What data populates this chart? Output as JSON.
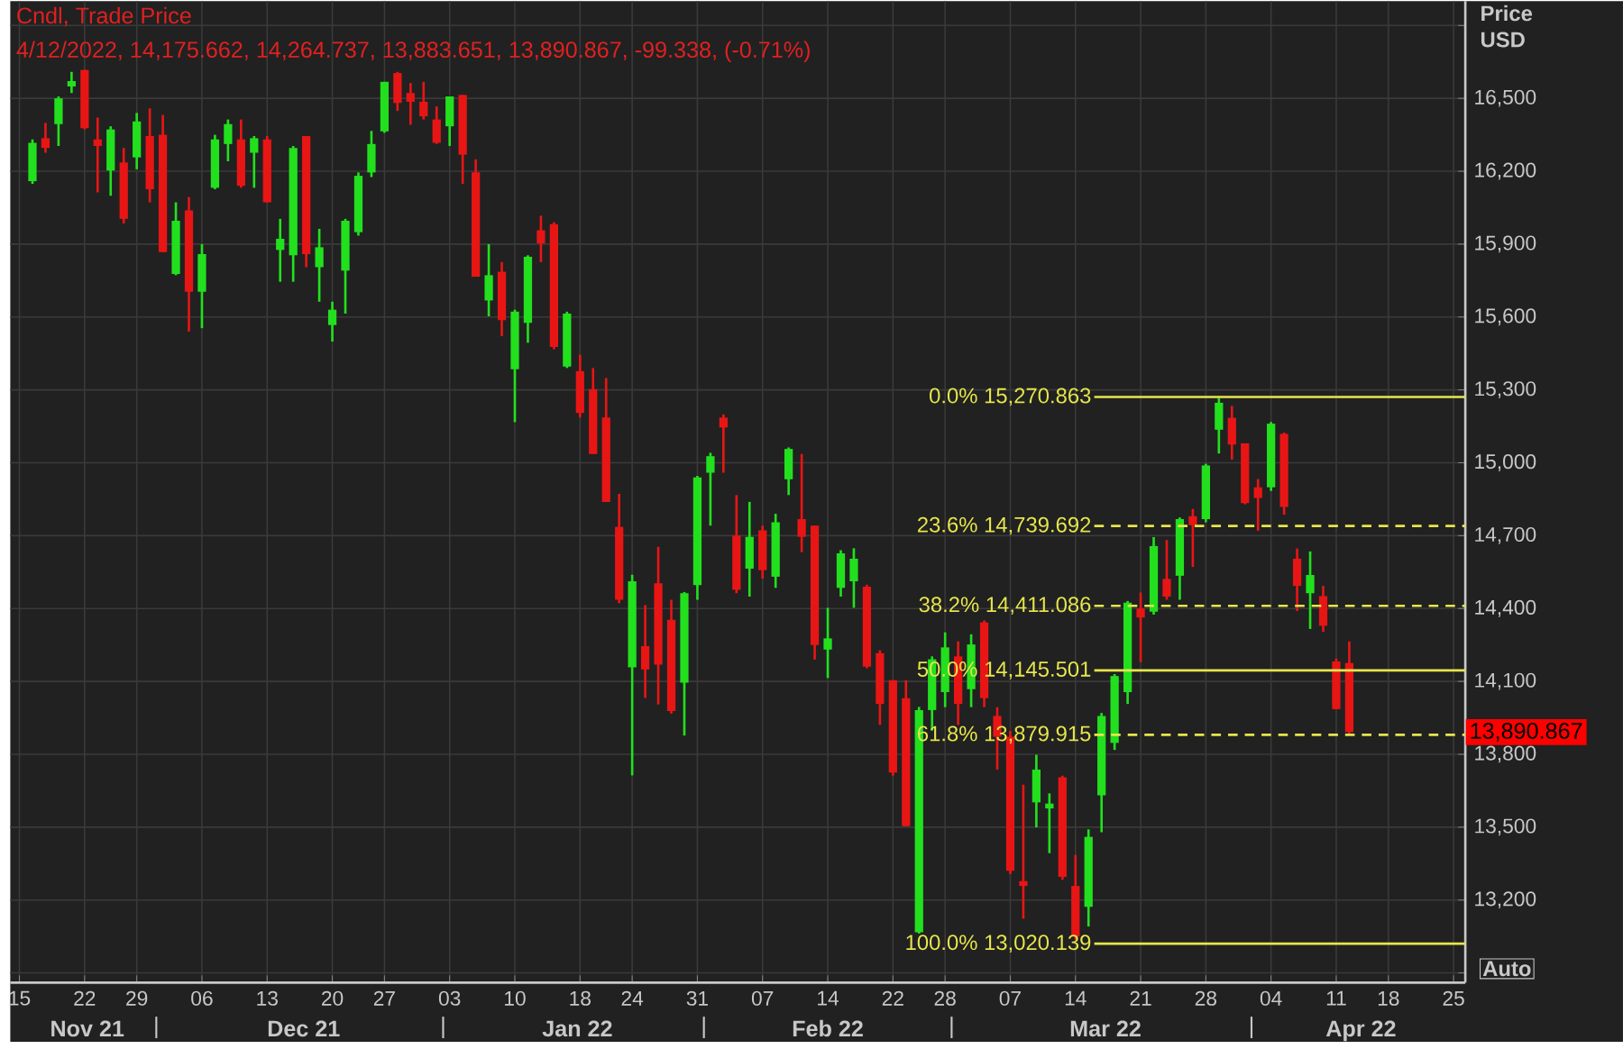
{
  "chart_data": {
    "type": "candlestick",
    "title": "Cndl, Trade Price",
    "subtitle": "4/12/2022, 14,175.662, 14,264.737, 13,883.651, 13,890.867, -99.338, (-0.71%)",
    "ylabel": "Price USD",
    "categories": [
      "15",
      null,
      null,
      null,
      null,
      "22",
      null,
      null,
      null,
      "29",
      null,
      null,
      null,
      null,
      "06",
      null,
      null,
      null,
      null,
      "13",
      null,
      null,
      null,
      null,
      "20",
      null,
      null,
      null,
      "27",
      null,
      null,
      null,
      null,
      "03",
      null,
      null,
      null,
      null,
      "10",
      null,
      null,
      null,
      null,
      "18",
      null,
      null,
      null,
      "24",
      null,
      null,
      null,
      null,
      "31",
      null,
      null,
      null,
      null,
      "07",
      null,
      null,
      null,
      null,
      "14",
      null,
      null,
      null,
      null,
      "22",
      null,
      null,
      null,
      "28",
      null,
      null,
      null,
      null,
      "07",
      null,
      null,
      null,
      null,
      "14",
      null,
      null,
      null,
      null,
      "21",
      null,
      null,
      null,
      null,
      "28",
      null,
      null,
      null,
      null,
      "04",
      null,
      null,
      null,
      null,
      "11",
      null,
      null,
      null,
      "18",
      null,
      null,
      null,
      null,
      "25"
    ],
    "ohlc": [
      null,
      [
        16159,
        16331,
        16148,
        16317
      ],
      [
        16336,
        16399,
        16276,
        16296
      ],
      [
        16394,
        16508,
        16304,
        16500
      ],
      [
        16549,
        16609,
        16522,
        16571
      ],
      [
        16617,
        16617,
        16372,
        16377
      ],
      [
        16331,
        16421,
        16113,
        16304
      ],
      [
        16203,
        16385,
        16099,
        16372
      ],
      [
        16236,
        16296,
        15985,
        16004
      ],
      [
        16257,
        16440,
        16208,
        16405
      ],
      [
        16345,
        16459,
        16072,
        16126
      ],
      [
        16350,
        16432,
        15867,
        15867
      ],
      [
        15777,
        16072,
        15772,
        15996
      ],
      [
        16039,
        16094,
        15540,
        15704
      ],
      [
        15704,
        15900,
        15554,
        15859
      ],
      [
        16132,
        16350,
        16126,
        16331
      ],
      [
        16312,
        16413,
        16241,
        16394
      ],
      [
        16331,
        16413,
        16132,
        16140
      ],
      [
        16276,
        16345,
        16132,
        16336
      ],
      [
        16331,
        16345,
        16072,
        16072
      ],
      [
        15876,
        16004,
        15745,
        15922
      ],
      [
        15854,
        16304,
        15745,
        16296
      ],
      [
        16345,
        16345,
        15805,
        15859
      ],
      [
        15805,
        15963,
        15663,
        15887
      ],
      [
        15567,
        15663,
        15499,
        15630
      ],
      [
        15791,
        16004,
        15614,
        15996
      ],
      [
        15949,
        16195,
        15935,
        16181
      ],
      [
        16195,
        16366,
        16176,
        16312
      ],
      [
        16364,
        16568,
        16358,
        16568
      ],
      [
        16604,
        16609,
        16448,
        16481
      ],
      [
        16522,
        16563,
        16391,
        16486
      ],
      [
        16486,
        16568,
        16413,
        16426
      ],
      [
        16413,
        16467,
        16312,
        16317
      ],
      [
        16385,
        16508,
        16304,
        16508
      ],
      [
        16514,
        16514,
        16148,
        16268
      ],
      [
        16195,
        16249,
        15766,
        15766
      ],
      [
        15668,
        15900,
        15603,
        15772
      ],
      [
        15786,
        15826,
        15521,
        15587
      ],
      [
        15385,
        15630,
        15167,
        15622
      ],
      [
        15576,
        15854,
        15494,
        15848
      ],
      [
        15957,
        16017,
        15826,
        15903
      ],
      [
        15982,
        15990,
        15467,
        15477
      ],
      [
        15396,
        15622,
        15390,
        15614
      ],
      [
        15377,
        15445,
        15186,
        15205
      ],
      [
        15303,
        15390,
        15036,
        15036
      ],
      [
        15186,
        15349,
        14839,
        14839
      ],
      [
        14736,
        14872,
        14422,
        14436
      ],
      [
        14158,
        14539,
        13713,
        14512
      ],
      [
        14245,
        14414,
        14032,
        14149
      ],
      [
        14504,
        14654,
        14005,
        14169
      ],
      [
        14354,
        14436,
        13967,
        13978
      ],
      [
        14095,
        14468,
        13877,
        14463
      ],
      [
        14496,
        14946,
        14436,
        14940
      ],
      [
        14959,
        15041,
        14741,
        15027
      ],
      [
        15186,
        15199,
        14959,
        15145
      ],
      [
        14700,
        14867,
        14463,
        14477
      ],
      [
        14564,
        14839,
        14449,
        14695
      ],
      [
        14722,
        14741,
        14523,
        14558
      ],
      [
        14531,
        14790,
        14485,
        14755
      ],
      [
        14932,
        15063,
        14867,
        15057
      ],
      [
        14768,
        15036,
        14632,
        14695
      ],
      [
        14741,
        14741,
        14190,
        14250
      ],
      [
        14231,
        14403,
        14114,
        14277
      ],
      [
        14485,
        14640,
        14449,
        14627
      ],
      [
        14512,
        14648,
        14403,
        14605
      ],
      [
        14490,
        14498,
        14154,
        14161
      ],
      [
        14216,
        14228,
        13921,
        14007
      ],
      [
        14105,
        14105,
        13712,
        13725
      ],
      [
        14031,
        14105,
        13504,
        13504
      ],
      [
        13067,
        13995,
        13062,
        13982
      ],
      [
        13982,
        14203,
        13897,
        14191
      ],
      [
        14056,
        14302,
        13994,
        14240
      ],
      [
        14203,
        14265,
        13921,
        14007
      ],
      [
        14068,
        14294,
        13994,
        14252
      ],
      [
        14343,
        14351,
        13994,
        14031
      ],
      [
        13958,
        13994,
        13737,
        13872
      ],
      [
        13872,
        13896,
        13307,
        13320
      ],
      [
        13278,
        13675,
        13123,
        13258
      ],
      [
        13602,
        13798,
        13499,
        13737
      ],
      [
        13577,
        13639,
        13393,
        13597
      ],
      [
        13705,
        13712,
        13283,
        13295
      ],
      [
        13258,
        13386,
        13037,
        13050
      ],
      [
        13172,
        13491,
        13091,
        13460
      ],
      [
        13631,
        13970,
        13479,
        13958
      ],
      [
        13847,
        14130,
        13818,
        14122
      ],
      [
        14056,
        14431,
        14007,
        14424
      ],
      [
        14400,
        14466,
        14179,
        14363
      ],
      [
        14387,
        14694,
        14375,
        14657
      ],
      [
        14522,
        14682,
        14436,
        14449
      ],
      [
        14535,
        14775,
        14436,
        14768
      ],
      [
        14780,
        14810,
        14571,
        14743
      ],
      [
        14768,
        14996,
        14755,
        14989
      ],
      [
        15136,
        15266,
        15038,
        15247
      ],
      [
        15185,
        15234,
        15013,
        15075
      ],
      [
        15080,
        15080,
        14829,
        14834
      ],
      [
        14899,
        14933,
        14720,
        14855
      ],
      [
        14899,
        15168,
        14884,
        15161
      ],
      [
        15119,
        15124,
        14786,
        14818
      ],
      [
        14605,
        14647,
        14390,
        14493
      ],
      [
        14463,
        14635,
        14316,
        14538
      ],
      [
        14451,
        14493,
        14304,
        14329
      ],
      [
        14182,
        14194,
        13986,
        13986
      ],
      [
        14175.662,
        14264.737,
        13883.651,
        13890.867
      ],
      null,
      null,
      null,
      null,
      null,
      null,
      null,
      null
    ],
    "colors": [
      null,
      "#22e01e",
      "#e81515",
      "#22e01e",
      "#22e01e",
      "#e81515",
      "#e81515",
      "#22e01e",
      "#e81515",
      "#22e01e",
      "#e81515",
      "#e81515",
      "#22e01e",
      "#e81515",
      "#22e01e",
      "#22e01e",
      "#22e01e",
      "#e81515",
      "#22e01e",
      "#e81515",
      "#22e01e",
      "#22e01e",
      "#e81515",
      "#22e01e",
      "#22e01e",
      "#22e01e",
      "#22e01e",
      "#22e01e",
      "#22e01e",
      "#e81515",
      "#e81515",
      "#e81515",
      "#e81515",
      "#22e01e",
      "#e81515",
      "#e81515",
      "#22e01e",
      "#e81515",
      "#22e01e",
      "#22e01e",
      "#e81515",
      "#e81515",
      "#22e01e",
      "#e81515",
      "#e81515",
      "#e81515",
      "#e81515",
      "#22e01e",
      "#e81515",
      "#e81515",
      "#e81515",
      "#22e01e",
      "#22e01e",
      "#22e01e",
      "#e81515",
      "#e81515",
      "#22e01e",
      "#e81515",
      "#22e01e",
      "#22e01e",
      "#e81515",
      "#e81515",
      "#22e01e",
      "#22e01e",
      "#22e01e",
      "#e81515",
      "#e81515",
      "#e81515",
      "#e81515",
      "#22e01e",
      "#22e01e",
      "#22e01e",
      "#e81515",
      "#22e01e",
      "#e81515",
      "#e81515",
      "#e81515",
      "#e81515",
      "#22e01e",
      "#22e01e",
      "#e81515",
      "#e81515",
      "#22e01e",
      "#22e01e",
      "#22e01e",
      "#22e01e",
      "#e81515",
      "#22e01e",
      "#e81515",
      "#22e01e",
      "#e81515",
      "#22e01e",
      "#22e01e",
      "#e81515",
      "#e81515",
      "#e81515",
      "#22e01e",
      "#e81515",
      "#e81515",
      "#22e01e",
      "#e81515",
      "#e81515",
      "#e81515",
      null,
      null,
      null,
      null,
      null,
      null,
      null,
      null
    ],
    "ylim": [
      12860,
      16900
    ],
    "yticks": [
      {
        "value": 12900,
        "label": null
      },
      {
        "value": 13200,
        "label": "13,200"
      },
      {
        "value": 13500,
        "label": "13,500"
      },
      {
        "value": 13800,
        "label": "13,800"
      },
      {
        "value": 14100,
        "label": "14,100"
      },
      {
        "value": 14400,
        "label": "14,400"
      },
      {
        "value": 14700,
        "label": "14,700"
      },
      {
        "value": 15000,
        "label": "15,000"
      },
      {
        "value": 15300,
        "label": "15,300"
      },
      {
        "value": 15600,
        "label": "15,600"
      },
      {
        "value": 15900,
        "label": "15,900"
      },
      {
        "value": 16200,
        "label": "16,200"
      },
      {
        "value": 16500,
        "label": "16,500"
      },
      {
        "value": 16800,
        "label": null
      }
    ],
    "grid": true,
    "ref_lines": [
      {
        "axis": "y",
        "value": 15270.863,
        "label": "0.0% 15,270.863",
        "color": "#e6e64c",
        "line_style": "solid"
      },
      {
        "axis": "y",
        "value": 14739.692,
        "label": "23.6% 14,739.692",
        "color": "#e6e64c",
        "line_style": "dashed"
      },
      {
        "axis": "y",
        "value": 14411.086,
        "label": "38.2% 14,411.086",
        "color": "#e6e64c",
        "line_style": "dashed"
      },
      {
        "axis": "y",
        "value": 14145.501,
        "label": "50.0% 14,145.501",
        "color": "#e6e64c",
        "line_style": "solid"
      },
      {
        "axis": "y",
        "value": 13879.915,
        "label": "61.8% 13,879.915",
        "color": "#e6e64c",
        "line_style": "dashed"
      },
      {
        "axis": "y",
        "value": 13020.139,
        "label": "100.0% 13,020.139",
        "color": "#e6e64c",
        "line_style": "solid"
      }
    ],
    "annotations": [
      "13,890.867",
      "Auto",
      "Nov 21",
      "Dec 21",
      "Jan 22",
      "Feb 22",
      "Mar 22",
      "Apr 22"
    ]
  }
}
